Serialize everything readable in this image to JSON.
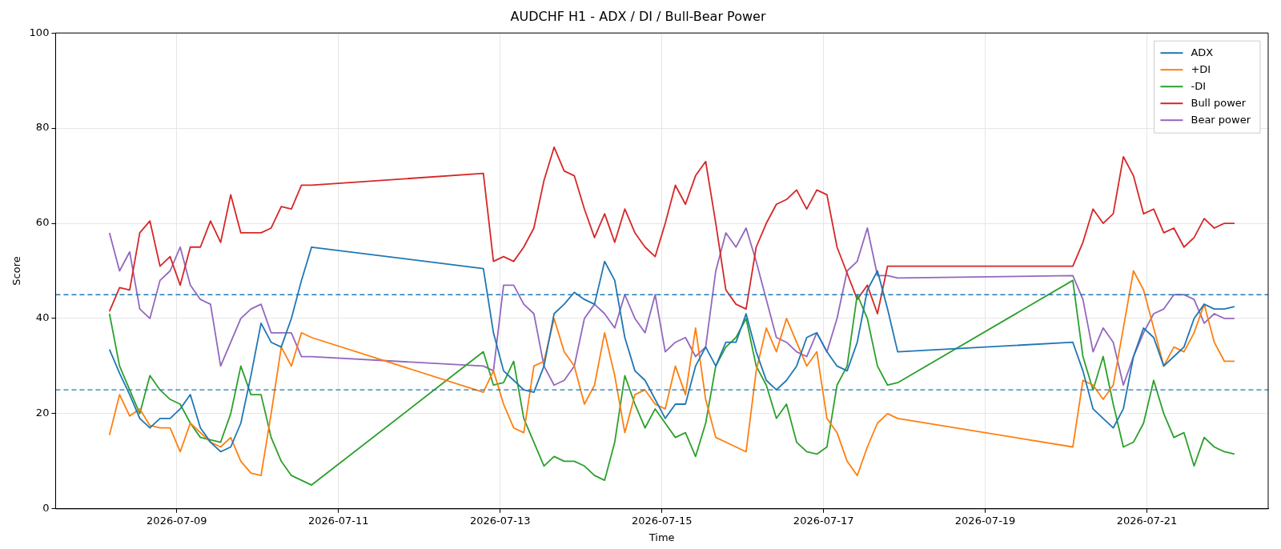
{
  "chart_data": {
    "type": "line",
    "title": "AUDCHF H1 - ADX / DI / Bull-Bear Power",
    "xlabel": "Time",
    "ylabel": "Score",
    "xlim": [
      "2026-07-07T12:00",
      "2026-07-22T12:00"
    ],
    "xticks": [
      "2026-07-09",
      "2026-07-11",
      "2026-07-13",
      "2026-07-15",
      "2026-07-17",
      "2026-07-19",
      "2026-07-21"
    ],
    "ylim": [
      0,
      100
    ],
    "yticks": [
      0,
      20,
      40,
      60,
      80,
      100
    ],
    "grid": true,
    "legend": "top right",
    "ref_lines": [
      {
        "axis": "y",
        "value": 45,
        "color": "#1f77b4",
        "line_style": "dashed"
      },
      {
        "axis": "y",
        "value": 25,
        "color": "#1f77b4",
        "line_style": "dashed"
      }
    ],
    "x": [
      "2026-07-08T04:00",
      "2026-07-08T07:00",
      "2026-07-08T10:00",
      "2026-07-08T13:00",
      "2026-07-08T16:00",
      "2026-07-08T19:00",
      "2026-07-08T22:00",
      "2026-07-09T01:00",
      "2026-07-09T04:00",
      "2026-07-09T07:00",
      "2026-07-09T10:00",
      "2026-07-09T13:00",
      "2026-07-09T16:00",
      "2026-07-09T19:00",
      "2026-07-09T22:00",
      "2026-07-10T01:00",
      "2026-07-10T04:00",
      "2026-07-10T07:00",
      "2026-07-10T10:00",
      "2026-07-10T13:00",
      "2026-07-10T16:00",
      "2026-07-12T19:00",
      "2026-07-12T22:00",
      "2026-07-13T01:00",
      "2026-07-13T04:00",
      "2026-07-13T07:00",
      "2026-07-13T10:00",
      "2026-07-13T13:00",
      "2026-07-13T16:00",
      "2026-07-13T19:00",
      "2026-07-13T22:00",
      "2026-07-14T01:00",
      "2026-07-14T04:00",
      "2026-07-14T07:00",
      "2026-07-14T10:00",
      "2026-07-14T13:00",
      "2026-07-14T16:00",
      "2026-07-14T19:00",
      "2026-07-14T22:00",
      "2026-07-15T01:00",
      "2026-07-15T04:00",
      "2026-07-15T07:00",
      "2026-07-15T10:00",
      "2026-07-15T13:00",
      "2026-07-15T16:00",
      "2026-07-15T19:00",
      "2026-07-15T22:00",
      "2026-07-16T01:00",
      "2026-07-16T04:00",
      "2026-07-16T07:00",
      "2026-07-16T10:00",
      "2026-07-16T13:00",
      "2026-07-16T16:00",
      "2026-07-16T19:00",
      "2026-07-16T22:00",
      "2026-07-17T01:00",
      "2026-07-17T04:00",
      "2026-07-17T07:00",
      "2026-07-17T10:00",
      "2026-07-17T13:00",
      "2026-07-17T16:00",
      "2026-07-17T19:00",
      "2026-07-17T22:00",
      "2026-07-20T02:00",
      "2026-07-20T05:00",
      "2026-07-20T08:00",
      "2026-07-20T11:00",
      "2026-07-20T14:00",
      "2026-07-20T17:00",
      "2026-07-20T20:00",
      "2026-07-20T23:00",
      "2026-07-21T02:00",
      "2026-07-21T05:00",
      "2026-07-21T08:00",
      "2026-07-21T11:00",
      "2026-07-21T14:00",
      "2026-07-21T17:00",
      "2026-07-21T20:00",
      "2026-07-21T23:00",
      "2026-07-22T02:00"
    ],
    "series": [
      {
        "name": "ADX",
        "color": "#1f77b4",
        "values": [
          33.5,
          28.5,
          24,
          19,
          17,
          19,
          19,
          21,
          24,
          17,
          14,
          12,
          13,
          18,
          28,
          39,
          35,
          34,
          40,
          48,
          55,
          50.5,
          37,
          29,
          27,
          25,
          24.5,
          30,
          41,
          43,
          45.5,
          44,
          43,
          52,
          48,
          36,
          29,
          27,
          23,
          19,
          22,
          22,
          30,
          34,
          30,
          35,
          35,
          41,
          33,
          27,
          25,
          27,
          30,
          36,
          37,
          33,
          30,
          29,
          35,
          46,
          50,
          42,
          33,
          35,
          29,
          21,
          19,
          17,
          21,
          32,
          38,
          36,
          30,
          32,
          34,
          40,
          43,
          42,
          42,
          42.5
        ]
      },
      {
        "name": "+DI",
        "color": "#ff7f0e",
        "values": [
          15.5,
          24,
          19.5,
          21,
          17.5,
          17,
          17,
          12,
          18,
          16,
          14,
          13,
          15,
          10,
          7.5,
          7,
          20,
          34,
          30,
          37,
          36,
          24.5,
          29,
          22,
          17,
          16,
          30,
          31,
          40,
          33,
          30,
          22,
          26,
          37,
          28,
          16,
          24,
          25,
          22,
          21,
          30,
          24,
          38,
          23,
          15,
          14,
          13,
          12,
          29,
          38,
          33,
          40,
          35,
          30,
          33,
          19,
          16,
          10,
          7,
          13,
          18,
          20,
          19,
          13,
          27,
          26,
          23,
          26,
          38,
          50,
          46,
          38,
          30,
          34,
          33,
          37,
          43,
          35,
          31,
          31
        ]
      },
      {
        "name": "-DI",
        "color": "#2ca02c",
        "values": [
          41,
          30,
          25,
          20,
          28,
          25,
          23,
          22,
          18,
          15,
          14.5,
          14,
          20,
          30,
          24,
          24,
          15,
          10,
          7,
          6,
          5,
          33,
          26,
          26.5,
          31,
          19,
          14,
          9,
          11,
          10,
          10,
          9,
          7,
          6,
          14,
          28,
          22,
          17,
          21,
          18,
          15,
          16,
          11,
          18,
          30,
          34,
          36,
          40,
          30,
          26,
          19,
          22,
          14,
          12,
          11.5,
          13,
          26,
          30,
          45,
          40,
          30,
          26,
          26.5,
          48,
          32,
          25,
          32,
          22,
          13,
          14,
          18,
          27,
          20,
          15,
          16,
          9,
          15,
          13,
          12,
          11.5
        ]
      },
      {
        "name": "Bull power",
        "color": "#d62728",
        "values": [
          41.5,
          46.5,
          46,
          58,
          60.5,
          51,
          53,
          47,
          55,
          55,
          60.5,
          56,
          66,
          58,
          58,
          58,
          59,
          63.5,
          63,
          68,
          68,
          70.5,
          52,
          53,
          52,
          55,
          59,
          69,
          76,
          71,
          70,
          63,
          57,
          62,
          56,
          63,
          58,
          55,
          53,
          60,
          68,
          64,
          70,
          73,
          60,
          46,
          43,
          42,
          55,
          60,
          64,
          65,
          67,
          63,
          67,
          66,
          55,
          49.5,
          44,
          47,
          41,
          51,
          51,
          51,
          56,
          63,
          60,
          62,
          74,
          70,
          62,
          63,
          58,
          59,
          55,
          57,
          61,
          59,
          60,
          60
        ]
      },
      {
        "name": "Bear power",
        "color": "#9467bd",
        "values": [
          58,
          50,
          54,
          42,
          40,
          48,
          50,
          55,
          47,
          44,
          43,
          30,
          35,
          40,
          42,
          43,
          37,
          37,
          37,
          32,
          32,
          30,
          29,
          47,
          47,
          43,
          41,
          30,
          26,
          27,
          30,
          40,
          43,
          41,
          38,
          45,
          40,
          37,
          45,
          33,
          35,
          36,
          32,
          34,
          50,
          58,
          55,
          59,
          52,
          44,
          36,
          35,
          33,
          32,
          37,
          33,
          40,
          50,
          52,
          59,
          49,
          49,
          48.5,
          49,
          44,
          33,
          38,
          35,
          26,
          32,
          37,
          41,
          42,
          45,
          45,
          44,
          39,
          41,
          40,
          40
        ]
      }
    ]
  }
}
